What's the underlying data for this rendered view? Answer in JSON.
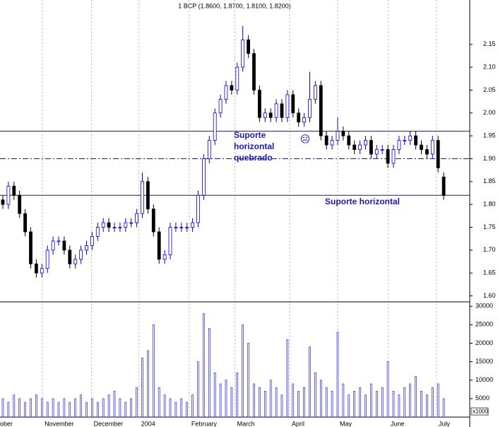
{
  "chart_data": {
    "type": "candlestick",
    "title": "1 BCP (1.8600, 1.8700, 1.8100, 1.8200)",
    "categories": [
      null,
      null,
      null,
      null,
      null,
      null,
      null,
      null,
      null,
      null,
      null,
      null,
      null,
      null,
      null,
      null,
      null,
      null,
      null,
      null,
      null,
      null,
      null,
      null,
      null,
      null,
      null,
      null,
      null,
      null,
      null,
      null,
      null,
      null,
      null,
      null,
      null,
      null,
      null,
      null,
      null,
      null,
      null,
      null,
      null,
      null,
      null,
      null,
      null,
      null,
      null,
      null,
      null,
      null,
      null,
      null,
      null,
      null,
      null,
      null,
      null,
      null,
      null,
      null,
      null,
      null,
      null,
      null,
      null,
      null,
      null,
      null,
      null,
      null,
      null,
      null,
      null,
      null,
      null,
      null
    ],
    "open": [
      1.81,
      1.8,
      1.84,
      1.82,
      1.78,
      1.74,
      1.67,
      1.65,
      1.66,
      1.7,
      1.72,
      1.72,
      1.7,
      1.67,
      1.68,
      1.7,
      1.71,
      1.73,
      1.75,
      1.76,
      1.75,
      1.75,
      1.75,
      1.76,
      1.76,
      1.78,
      1.85,
      1.79,
      1.74,
      1.68,
      1.69,
      1.75,
      1.75,
      1.75,
      1.75,
      1.76,
      1.82,
      1.9,
      1.94,
      2.0,
      2.03,
      2.06,
      2.05,
      2.1,
      2.16,
      2.13,
      2.05,
      1.99,
      2.0,
      1.99,
      2.02,
      1.99,
      2.04,
      2.0,
      1.98,
      1.99,
      2.03,
      2.06,
      1.95,
      1.93,
      1.94,
      1.96,
      1.95,
      1.93,
      1.92,
      1.93,
      1.94,
      1.91,
      1.92,
      1.92,
      1.89,
      1.92,
      1.94,
      1.94,
      1.95,
      1.93,
      1.92,
      1.91,
      1.94,
      1.86
    ],
    "high": [
      1.82,
      1.85,
      1.85,
      1.83,
      1.79,
      1.75,
      1.68,
      1.67,
      1.71,
      1.73,
      1.73,
      1.73,
      1.71,
      1.69,
      1.71,
      1.72,
      1.74,
      1.76,
      1.77,
      1.77,
      1.76,
      1.76,
      1.77,
      1.77,
      1.79,
      1.87,
      1.86,
      1.8,
      1.75,
      1.7,
      1.76,
      1.76,
      1.76,
      1.76,
      1.77,
      1.83,
      1.91,
      1.95,
      2.01,
      2.04,
      2.07,
      2.07,
      2.11,
      2.19,
      2.17,
      2.14,
      2.06,
      2.01,
      2.01,
      2.03,
      2.03,
      2.05,
      2.05,
      2.01,
      2.0,
      2.09,
      2.07,
      2.07,
      1.96,
      1.95,
      1.99,
      1.97,
      1.96,
      1.94,
      1.94,
      1.95,
      1.95,
      1.93,
      1.93,
      1.93,
      1.93,
      1.95,
      1.95,
      1.96,
      1.96,
      1.94,
      1.93,
      1.95,
      1.95,
      1.87
    ],
    "low": [
      1.79,
      1.79,
      1.81,
      1.77,
      1.73,
      1.66,
      1.64,
      1.64,
      1.65,
      1.69,
      1.71,
      1.69,
      1.66,
      1.66,
      1.67,
      1.69,
      1.7,
      1.72,
      1.74,
      1.74,
      1.74,
      1.74,
      1.74,
      1.75,
      1.75,
      1.77,
      1.78,
      1.73,
      1.67,
      1.67,
      1.68,
      1.74,
      1.74,
      1.74,
      1.74,
      1.75,
      1.81,
      1.89,
      1.93,
      1.99,
      2.02,
      2.04,
      2.04,
      2.09,
      2.12,
      2.04,
      1.98,
      1.98,
      1.98,
      1.98,
      1.98,
      1.98,
      1.99,
      1.97,
      1.97,
      1.98,
      2.02,
      1.94,
      1.92,
      1.92,
      1.93,
      1.94,
      1.92,
      1.91,
      1.91,
      1.92,
      1.9,
      1.9,
      1.91,
      1.88,
      1.88,
      1.91,
      1.93,
      1.93,
      1.92,
      1.91,
      1.9,
      1.9,
      1.87,
      1.81
    ],
    "close": [
      1.8,
      1.84,
      1.82,
      1.78,
      1.74,
      1.67,
      1.65,
      1.66,
      1.7,
      1.72,
      1.72,
      1.7,
      1.67,
      1.68,
      1.7,
      1.71,
      1.73,
      1.75,
      1.76,
      1.75,
      1.75,
      1.75,
      1.76,
      1.76,
      1.78,
      1.85,
      1.79,
      1.74,
      1.68,
      1.69,
      1.75,
      1.75,
      1.75,
      1.75,
      1.76,
      1.82,
      1.9,
      1.94,
      2.0,
      2.03,
      2.06,
      2.05,
      2.1,
      2.16,
      2.13,
      2.05,
      1.99,
      2.0,
      1.99,
      2.02,
      1.99,
      2.04,
      2.0,
      1.98,
      1.99,
      2.03,
      2.06,
      1.95,
      1.93,
      1.94,
      1.96,
      1.95,
      1.93,
      1.92,
      1.93,
      1.94,
      1.91,
      1.92,
      1.92,
      1.89,
      1.92,
      1.94,
      1.94,
      1.95,
      1.93,
      1.92,
      1.91,
      1.94,
      1.88,
      1.82
    ],
    "volume": [
      5000,
      4000,
      6000,
      5000,
      4000,
      5000,
      6000,
      5000,
      4000,
      5000,
      4000,
      5000,
      4000,
      5000,
      6000,
      4000,
      5000,
      4000,
      5000,
      6000,
      7000,
      5000,
      4000,
      5000,
      8000,
      16000,
      18000,
      25000,
      8000,
      6000,
      5000,
      4000,
      5000,
      4000,
      6000,
      15000,
      28000,
      24000,
      12000,
      9000,
      10000,
      8000,
      12000,
      25000,
      20000,
      9000,
      8000,
      7000,
      10000,
      8000,
      6000,
      21000,
      9000,
      7000,
      8000,
      19000,
      12000,
      10000,
      8000,
      7000,
      23000,
      9000,
      6000,
      7000,
      8000,
      6000,
      9000,
      7000,
      8000,
      15000,
      7000,
      6000,
      8000,
      9000,
      11000,
      7000,
      6000,
      8000,
      9000,
      5000
    ],
    "up_color": "#0000cc",
    "down_color": "#000000",
    "volume_color": "#0000cc",
    "ylim": [
      1.59,
      2.247
    ],
    "yticks": [
      {
        "value": 1.6,
        "label": "1.60"
      },
      {
        "value": 1.65,
        "label": "1.65"
      },
      {
        "value": 1.7,
        "label": "1.70"
      },
      {
        "value": 1.75,
        "label": "1.75"
      },
      {
        "value": 1.8,
        "label": "1.80"
      },
      {
        "value": 1.85,
        "label": "1.85"
      },
      {
        "value": 1.9,
        "label": "1.90"
      },
      {
        "value": 1.95,
        "label": "1.95"
      },
      {
        "value": 2.0,
        "label": "2.00"
      },
      {
        "value": 2.05,
        "label": "2.05"
      },
      {
        "value": 2.1,
        "label": "2.10"
      },
      {
        "value": 2.15,
        "label": "2.15"
      }
    ],
    "volume_ylim": [
      0,
      31000
    ],
    "volume_yticks": [
      5000,
      10000,
      15000,
      20000,
      25000,
      30000
    ],
    "volume_unit_label": "x1000",
    "xticks": [
      {
        "value": -1,
        "label": "ober"
      },
      {
        "value": 7.1,
        "label": "November"
      },
      {
        "value": 15.9,
        "label": "December"
      },
      {
        "value": 24.4,
        "label": "2004"
      },
      {
        "value": 33.4,
        "label": "February"
      },
      {
        "value": 41.6,
        "label": "March"
      },
      {
        "value": 51.4,
        "label": "April"
      },
      {
        "value": 60,
        "label": "May"
      },
      {
        "value": 69.1,
        "label": "June"
      },
      {
        "value": 77.7,
        "label": "July"
      }
    ],
    "hlines": [
      {
        "value": 1.96,
        "style": "solid"
      },
      {
        "value": 1.9,
        "style": "dashdot"
      },
      {
        "value": 1.82,
        "style": "solid"
      }
    ],
    "annotations": [
      {
        "lines": [
          "Suporte",
          "horizontal",
          "quebrado"
        ]
      },
      {
        "lines": [
          "Suporte horizontal"
        ]
      },
      {
        "lines": [
          "☹"
        ]
      }
    ]
  }
}
